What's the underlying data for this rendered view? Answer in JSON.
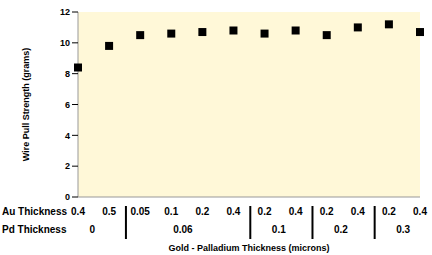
{
  "chart_data": {
    "type": "scatter",
    "y_label": "Wire Pull Strength (grams)",
    "x_label": "Gold - Palladium Thickness (microns)",
    "category_label": "Au Thickness",
    "group_label": "Pd Thickness",
    "categories": [
      "0.4",
      "0.5",
      "0.05",
      "0.1",
      "0.2",
      "0.4",
      "0.2",
      "0.4",
      "0.2",
      "0.4",
      "0.2",
      "0.4"
    ],
    "groups": [
      "0",
      "0",
      "0.06",
      "0.06",
      "0.06",
      "0.06",
      "0.1",
      "0.1",
      "0.2",
      "0.2",
      "0.3",
      "0.3"
    ],
    "values": [
      8.4,
      9.8,
      10.5,
      10.6,
      10.7,
      10.8,
      10.6,
      10.8,
      10.5,
      11.0,
      11.2,
      10.7
    ],
    "color": "#000000",
    "marker": "square",
    "ylim": [
      0,
      12
    ],
    "yticks": [
      0,
      2,
      4,
      6,
      8,
      10,
      12
    ],
    "grid": false
  }
}
